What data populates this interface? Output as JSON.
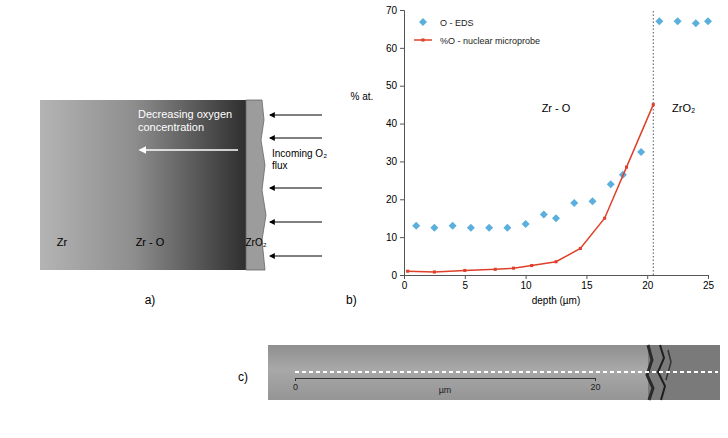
{
  "diagram": {
    "panel_label": "a)",
    "text": "Decreasing oxygen concentration",
    "flux_label": "Incoming O₂ flux",
    "regions": [
      "Zr",
      "Zr - O",
      "ZrO₂"
    ]
  },
  "chart_data": {
    "type": "scatter",
    "panel_label": "b)",
    "x_label": "depth (µm)",
    "y_label": "% at.",
    "xlim": [
      0,
      25
    ],
    "ylim": [
      0,
      70
    ],
    "xticks": [
      0,
      5,
      10,
      15,
      20,
      25
    ],
    "yticks": [
      0,
      10,
      20,
      30,
      40,
      50,
      60,
      70
    ],
    "legend": "top-left",
    "series": [
      {
        "name": "O - EDS",
        "color": "#5aafdc",
        "type": "scatter",
        "marker": "diamond",
        "x": [
          1,
          2.5,
          4,
          5.5,
          7,
          8.5,
          10,
          11.5,
          12.5,
          14,
          15.5,
          17,
          18,
          19.5,
          21,
          22.5,
          24,
          25
        ],
        "values": [
          13,
          12.5,
          13,
          12.5,
          12.5,
          12.5,
          13.5,
          16,
          15,
          19,
          19.5,
          24,
          26.5,
          32.5,
          67,
          67,
          66.5,
          67
        ]
      },
      {
        "name": "%O - nuclear microprobe",
        "color": "#e0402a",
        "type": "line",
        "marker": "square",
        "x": [
          0.3,
          2.5,
          5,
          7.5,
          9,
          10.5,
          12.5,
          14.5,
          16.5,
          18.3,
          20.5
        ],
        "values": [
          1,
          0.8,
          1.2,
          1.5,
          1.8,
          2.5,
          3.5,
          7,
          15,
          28.5,
          45
        ]
      }
    ],
    "annotations": [
      {
        "text": "Zr - O",
        "x": 12.5,
        "y": 43
      },
      {
        "text": "ZrO₂",
        "x": 23,
        "y": 43
      }
    ],
    "reference_lines": [
      {
        "x": 20.5,
        "line_style": "dotted"
      }
    ]
  },
  "micrograph": {
    "panel_label": "c)",
    "scale": {
      "unit": "µm",
      "ticks": [
        0,
        20
      ]
    }
  }
}
